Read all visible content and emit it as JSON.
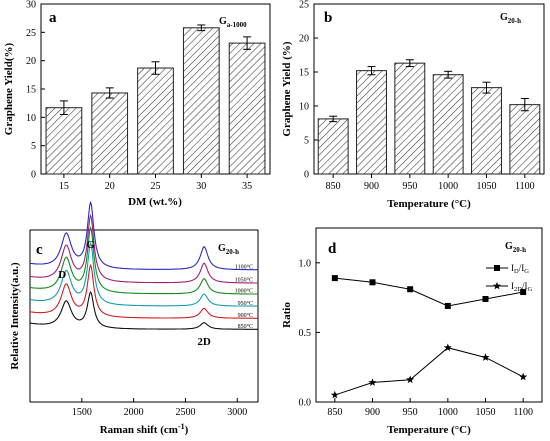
{
  "chart_data": [
    {
      "id": "a",
      "type": "bar",
      "panel_label": "a",
      "tag": "G",
      "tag_sub": "a-1000",
      "categories": [
        "15",
        "20",
        "25",
        "30",
        "35"
      ],
      "values": [
        11.7,
        14.3,
        18.7,
        25.8,
        23.1
      ],
      "errors": [
        1.2,
        0.9,
        1.1,
        0.5,
        1.1
      ],
      "xlabel": "DM (wt.%)",
      "ylabel": "Graphene Yield(%)",
      "ylim": [
        0,
        30
      ],
      "yticks": [
        "0",
        "5",
        "10",
        "15",
        "20",
        "25",
        "30"
      ],
      "hatch": "diagonal"
    },
    {
      "id": "b",
      "type": "bar",
      "panel_label": "b",
      "tag": "G",
      "tag_sub": "20-h",
      "categories": [
        "850",
        "900",
        "950",
        "1000",
        "1050",
        "1100"
      ],
      "values": [
        8.1,
        15.2,
        16.3,
        14.6,
        12.7,
        10.2
      ],
      "errors": [
        0.4,
        0.6,
        0.5,
        0.5,
        0.8,
        0.9
      ],
      "xlabel": "Temperature (°C)",
      "ylabel": "Graphene Yield (%)",
      "ylim": [
        0,
        25
      ],
      "yticks": [
        "0",
        "5",
        "10",
        "15",
        "20",
        "25"
      ],
      "hatch": "diagonal"
    },
    {
      "id": "c",
      "type": "line",
      "panel_label": "c",
      "tag": "G",
      "tag_sub": "20-h",
      "xlabel": "Raman shift (cm",
      "xlabel_sup": "-1",
      "xlabel_end": ")",
      "ylabel": "Relative Intensity(a.u.)",
      "xlim": [
        1000,
        3200
      ],
      "xticks": [
        "1500",
        "2000",
        "2500",
        "3000"
      ],
      "peaks": [
        {
          "label": "D",
          "x": 1350
        },
        {
          "label": "G",
          "x": 1585
        },
        {
          "label": "2D",
          "x": 2680
        }
      ],
      "series": [
        {
          "name": "1100°C",
          "color": "#2b2bc0",
          "offset": 6.0,
          "d": 1.55,
          "g": 2.95,
          "d2": 1.05
        },
        {
          "name": "1050°C",
          "color": "#a0207a",
          "offset": 5.4,
          "d": 1.6,
          "g": 2.95,
          "d2": 0.9
        },
        {
          "name": "1000°C",
          "color": "#1a8a1a",
          "offset": 4.9,
          "d": 1.55,
          "g": 2.9,
          "d2": 0.7
        },
        {
          "name": "950°C",
          "color": "#10a0b0",
          "offset": 4.35,
          "d": 1.5,
          "g": 2.75,
          "d2": 0.55
        },
        {
          "name": "900°C",
          "color": "#d02020",
          "offset": 3.8,
          "d": 1.45,
          "g": 2.3,
          "d2": 0.45
        },
        {
          "name": "850°C",
          "color": "#111111",
          "offset": 3.3,
          "d": 1.2,
          "g": 1.6,
          "d2": 0.3
        }
      ]
    },
    {
      "id": "d",
      "type": "line",
      "panel_label": "d",
      "tag": "G",
      "tag_sub": "20-h",
      "x": [
        850,
        900,
        950,
        1000,
        1050,
        1100
      ],
      "xticks": [
        "850",
        "900",
        "950",
        "1000",
        "1050",
        "1100"
      ],
      "xlim": [
        825,
        1125
      ],
      "ylim": [
        0,
        1.25
      ],
      "yticks": [
        "0.0",
        "0.5",
        "1.0"
      ],
      "xlabel": "Temperature (°C)",
      "ylabel": "Ratio",
      "series": [
        {
          "name": "I",
          "sub1": "D",
          "sep": "/I",
          "sub2": "G",
          "marker": "square",
          "values": [
            0.89,
            0.86,
            0.81,
            0.69,
            0.74,
            0.79
          ]
        },
        {
          "name": "I",
          "sub1": "2D",
          "sep": "/I",
          "sub2": "G",
          "marker": "star",
          "values": [
            0.05,
            0.14,
            0.16,
            0.39,
            0.32,
            0.18
          ]
        }
      ]
    }
  ]
}
